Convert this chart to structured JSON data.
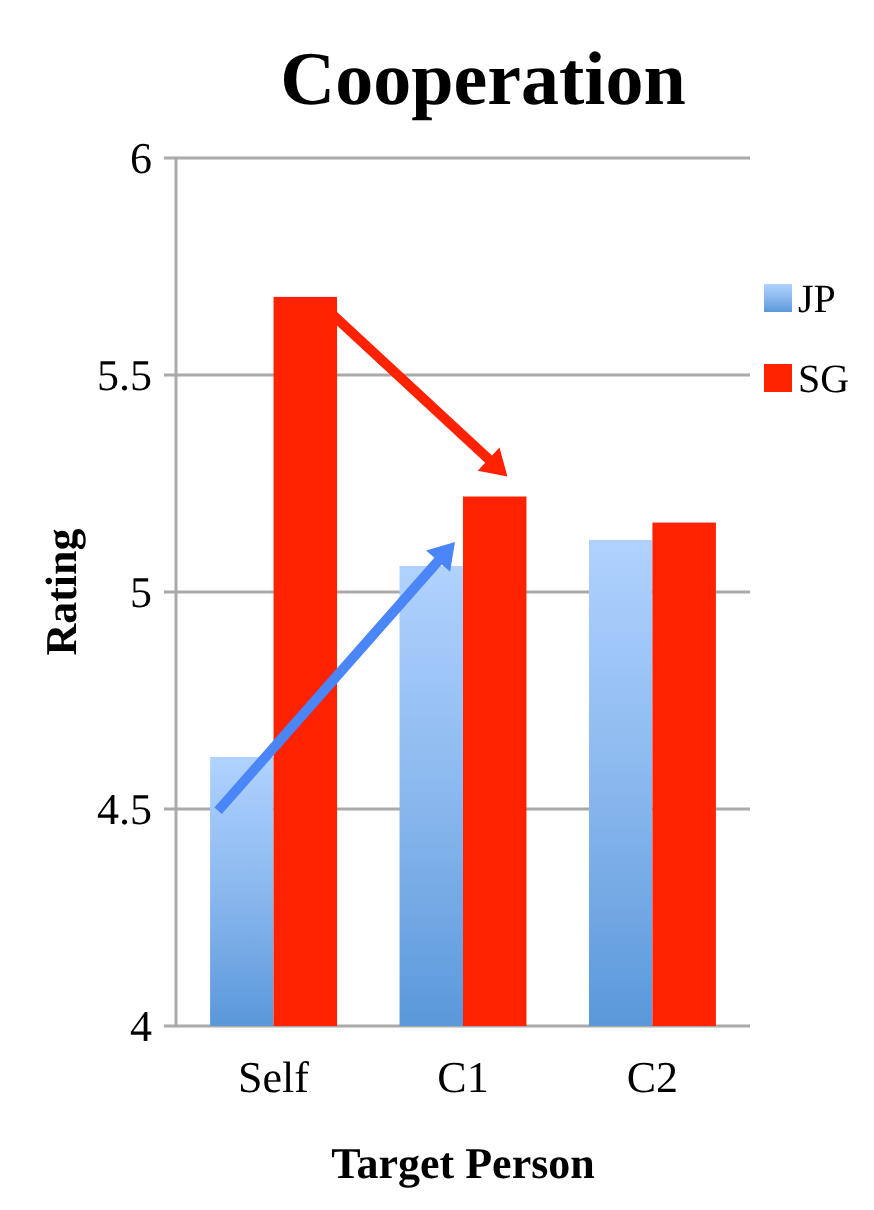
{
  "chart_data": {
    "type": "bar",
    "title": "Cooperation",
    "xlabel": "Target Person",
    "ylabel": "Rating",
    "categories": [
      "Self",
      "C1",
      "C2"
    ],
    "series": [
      {
        "name": "JP",
        "color": "#8ab8ee",
        "values": [
          4.62,
          5.06,
          5.12
        ]
      },
      {
        "name": "SG",
        "color": "#ff2200",
        "values": [
          5.68,
          5.22,
          5.16
        ]
      }
    ],
    "ylim": [
      4,
      6
    ],
    "yticks": [
      4,
      4.5,
      5,
      5.5,
      6
    ],
    "grid": "y",
    "legend": "right"
  }
}
